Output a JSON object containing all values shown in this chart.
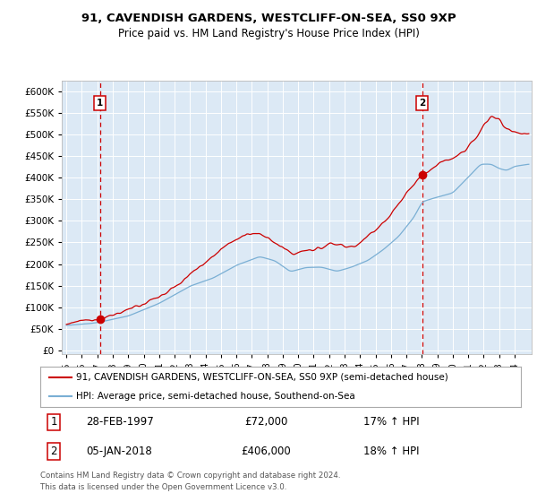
{
  "title1": "91, CAVENDISH GARDENS, WESTCLIFF-ON-SEA, SS0 9XP",
  "title2": "Price paid vs. HM Land Registry's House Price Index (HPI)",
  "legend1": "91, CAVENDISH GARDENS, WESTCLIFF-ON-SEA, SS0 9XP (semi-detached house)",
  "legend2": "HPI: Average price, semi-detached house, Southend-on-Sea",
  "marker1_date": "28-FEB-1997",
  "marker1_price": 72000,
  "marker1_hpi": "17% ↑ HPI",
  "marker2_date": "05-JAN-2018",
  "marker2_price": 406000,
  "marker2_hpi": "18% ↑ HPI",
  "yticks": [
    0,
    50000,
    100000,
    150000,
    200000,
    250000,
    300000,
    350000,
    400000,
    450000,
    500000,
    550000,
    600000
  ],
  "ylim": [
    -8000,
    625000
  ],
  "year_start": 1995,
  "year_end": 2024,
  "plot_bg": "#dce9f5",
  "red_color": "#cc0000",
  "blue_color": "#7aafd4",
  "grid_color": "#ffffff",
  "footnote1": "Contains HM Land Registry data © Crown copyright and database right 2024.",
  "footnote2": "This data is licensed under the Open Government Licence v3.0."
}
